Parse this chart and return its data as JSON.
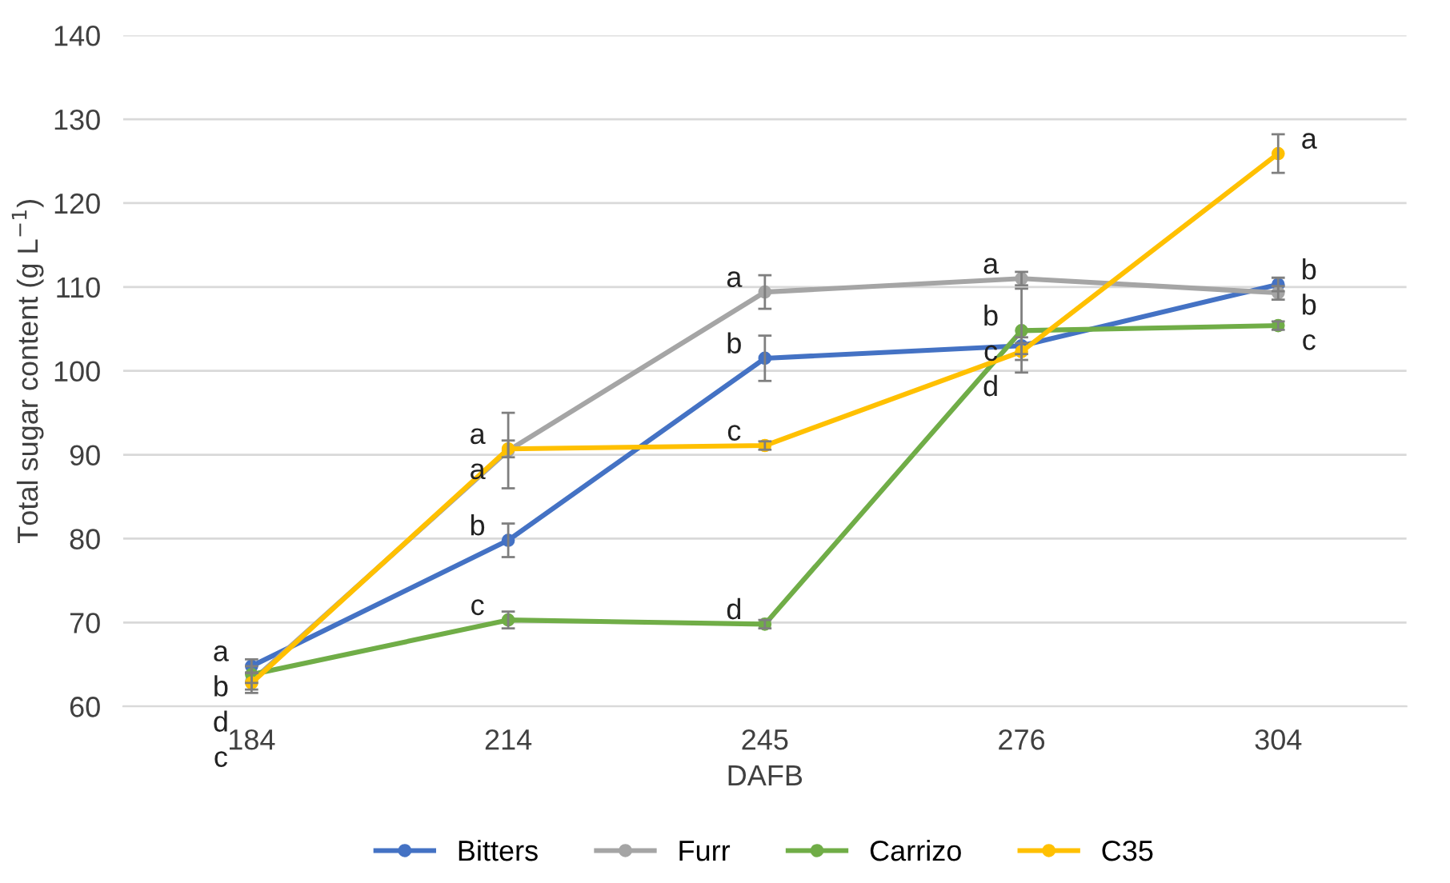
{
  "chart_data": {
    "type": "line",
    "xlabel": "DAFB",
    "ylabel": "Total sugar content (g L$^{−1}$)",
    "categories": [
      "184",
      "214",
      "245",
      "276",
      "304"
    ],
    "ylim": [
      60,
      140
    ],
    "yticks": [
      60,
      70,
      80,
      90,
      100,
      110,
      120,
      130,
      140
    ],
    "grid": "y",
    "legend": "bottom",
    "marker": "circle",
    "line_style": "solid",
    "series": [
      {
        "name": "Bitters",
        "color": "#4472c4",
        "values": [
          64.8,
          79.8,
          101.5,
          103,
          110.3
        ],
        "errors": [
          0.8,
          2,
          2.7,
          1,
          0.8
        ],
        "value_labels": [
          "a",
          "b",
          "b",
          "c",
          "b"
        ]
      },
      {
        "name": "Furr",
        "color": "#a5a5a5",
        "values": [
          63,
          90.5,
          109.4,
          111,
          109.3
        ],
        "errors": [
          1,
          4.5,
          2,
          0.8,
          0.8
        ],
        "value_labels": [
          "d",
          "a",
          "a",
          "a",
          "b"
        ]
      },
      {
        "name": "Carrizo",
        "color": "#70ad47",
        "values": [
          63.8,
          70.3,
          69.8,
          104.8,
          105.4
        ],
        "errors": [
          1,
          1,
          0.5,
          5,
          0.5
        ],
        "value_labels": [
          "b",
          "c",
          "d",
          "b",
          "c"
        ]
      },
      {
        "name": "C35",
        "color": "#ffc000",
        "values": [
          62.8,
          90.7,
          91.1,
          102.3,
          125.9
        ],
        "errors": [
          1.2,
          1,
          0.5,
          1,
          2.3
        ],
        "value_labels": [
          "c",
          "a",
          "c",
          "d",
          "a"
        ]
      }
    ]
  }
}
